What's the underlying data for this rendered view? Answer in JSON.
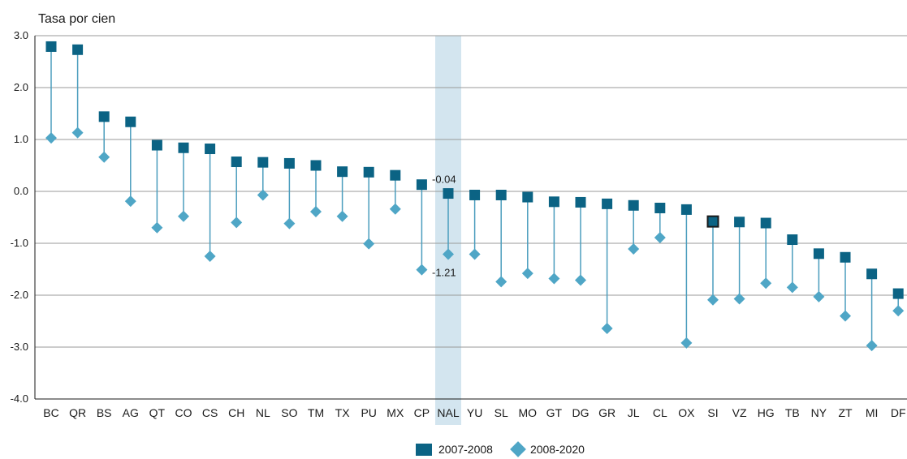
{
  "chart_data": {
    "type": "dot-range",
    "ylabel": "Tasa por cien",
    "ylim": [
      -4.0,
      3.0
    ],
    "yticks": [
      "3.0",
      "2.0",
      "1.0",
      "0.0",
      "-1.0",
      "-2.0",
      "-3.0",
      "-4.0"
    ],
    "categories": [
      "BC",
      "QR",
      "BS",
      "AG",
      "QT",
      "CO",
      "CS",
      "CH",
      "NL",
      "SO",
      "TM",
      "TX",
      "PU",
      "MX",
      "CP",
      "NAL",
      "YU",
      "SL",
      "MO",
      "GT",
      "DG",
      "GR",
      "JL",
      "CL",
      "OX",
      "SI",
      "VZ",
      "HG",
      "TB",
      "NY",
      "ZT",
      "MI",
      "DF"
    ],
    "highlight_category": "NAL",
    "series": [
      {
        "name": "2007-2008",
        "marker": "square",
        "color": "#0b6384",
        "values": [
          2.79,
          2.73,
          1.44,
          1.34,
          0.89,
          0.84,
          0.82,
          0.57,
          0.56,
          0.54,
          0.5,
          0.38,
          0.37,
          0.31,
          0.13,
          -0.04,
          -0.07,
          -0.07,
          -0.11,
          -0.2,
          -0.21,
          -0.24,
          -0.27,
          -0.32,
          -0.35,
          -0.58,
          -0.59,
          -0.61,
          -0.93,
          -1.2,
          -1.27,
          -1.59,
          -1.97
        ]
      },
      {
        "name": "2008-2020",
        "marker": "diamond",
        "color": "#4fa6c6",
        "values": [
          1.03,
          1.13,
          0.66,
          -0.19,
          -0.7,
          -0.48,
          -1.25,
          -0.6,
          -0.07,
          -0.62,
          -0.39,
          -0.48,
          -1.01,
          -0.34,
          -1.51,
          -1.21,
          -1.21,
          -1.74,
          -1.58,
          -1.68,
          -1.71,
          -2.64,
          -1.11,
          -0.89,
          -2.92,
          -2.09,
          -2.07,
          -1.77,
          -1.85,
          -2.03,
          -2.4,
          -2.97,
          -2.3
        ]
      }
    ],
    "data_labels": [
      {
        "category": "NAL",
        "series": "2007-2008",
        "text": "-0.04"
      },
      {
        "category": "NAL",
        "series": "2008-2020",
        "text": "-1.21"
      }
    ],
    "grid": "horizontal",
    "legend_position": "bottom-center"
  }
}
